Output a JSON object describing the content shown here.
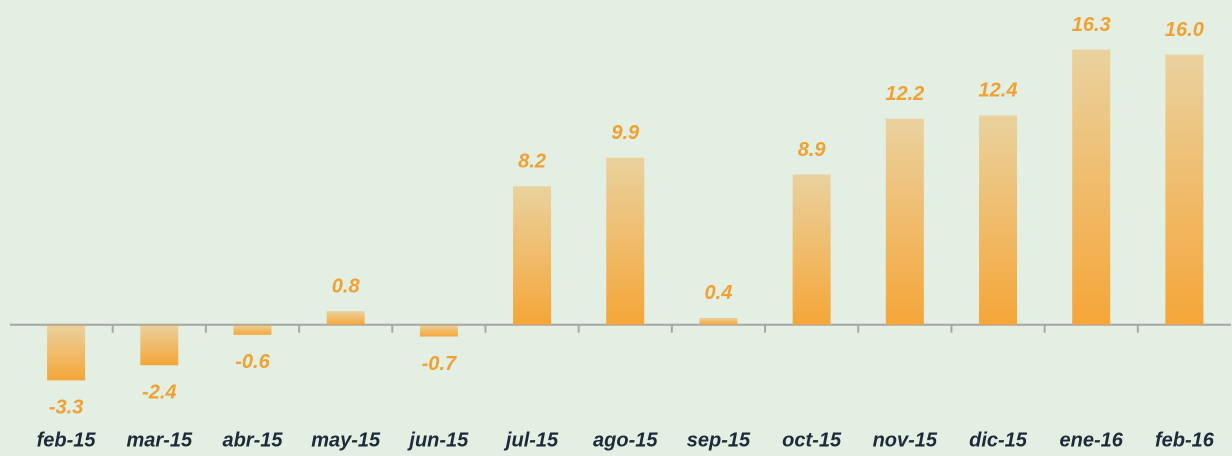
{
  "chart_data": {
    "type": "bar",
    "categories": [
      "feb-15",
      "mar-15",
      "abr-15",
      "may-15",
      "jun-15",
      "jul-15",
      "ago-15",
      "sep-15",
      "oct-15",
      "nov-15",
      "dic-15",
      "ene-16",
      "feb-16"
    ],
    "values": [
      -3.3,
      -2.4,
      -0.6,
      0.8,
      -0.7,
      8.2,
      9.9,
      0.4,
      8.9,
      12.2,
      12.4,
      16.3,
      16.0
    ],
    "value_labels": [
      "-3.3",
      "-2.4",
      "-0.6",
      "0.8",
      "-0.7",
      "8.2",
      "9.9",
      "0.4",
      "8.9",
      "12.2",
      "12.4",
      "16.3",
      "16.0"
    ],
    "color": "#f5a638",
    "ylim": [
      -6,
      19
    ]
  }
}
